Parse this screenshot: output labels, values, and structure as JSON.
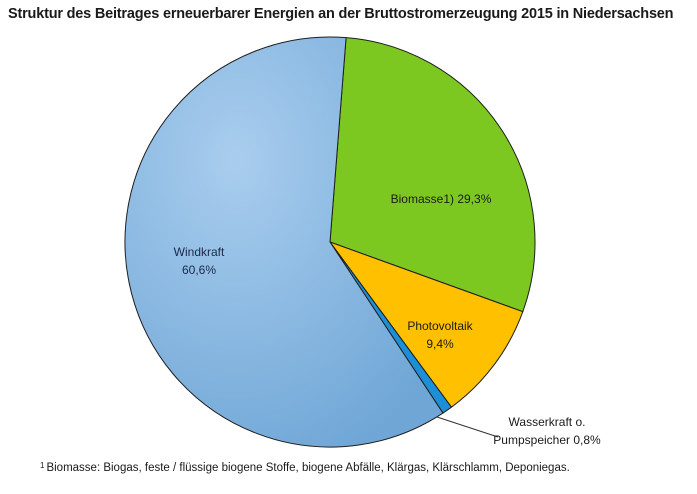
{
  "title": "Struktur des Beitrages erneuerbarer Energien an der Bruttostromerzeugung 2015 in Niedersachsen",
  "footnote": {
    "marker": "1",
    "text": "Biomasse: Biogas, feste / flüssige biogene Stoffe, biogene Abfälle, Klärgas, Klärschlamm, Deponiegas."
  },
  "chart_data": {
    "type": "pie",
    "title": "Struktur des Beitrages erneuerbarer Energien an der Bruttostromerzeugung 2015 in Niedersachsen",
    "slices": [
      {
        "name": "Biomasse1)",
        "value": 29.3,
        "value_label": "29,3%",
        "color": "#7dc820"
      },
      {
        "name": "Photovoltaik",
        "value": 9.4,
        "value_label": "9,4%",
        "color": "#ffc000"
      },
      {
        "name": "Wasserkraft o. Pumpspeicher",
        "value": 0.8,
        "value_label": "0,8%",
        "color": "#1c8fd9"
      },
      {
        "name": "Windkraft",
        "value": 60.6,
        "value_label": "60,6%",
        "color": "#86b7e1"
      }
    ],
    "label_text": {
      "biomasse": "Biomasse1) 29,3%",
      "photovoltaik_line1": "Photovoltaik",
      "photovoltaik_line2": "9,4%",
      "wasserkraft_line1": "Wasserkraft o.",
      "wasserkraft_line2": "Pumpspeicher 0,8%",
      "windkraft_line1": "Windkraft",
      "windkraft_line2": "60,6%"
    },
    "start_angle_deg": 4.5,
    "direction": "clockwise",
    "legend": "none"
  }
}
